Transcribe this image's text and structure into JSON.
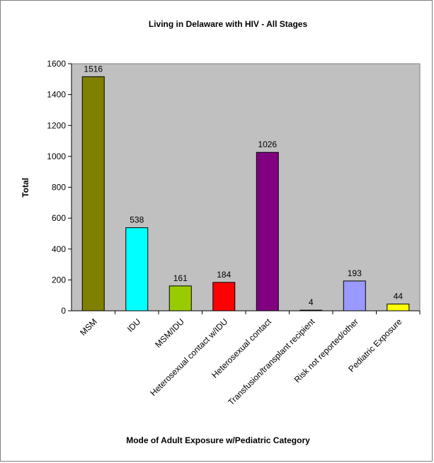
{
  "chart_data": {
    "type": "bar",
    "title": "Living in Delaware with HIV - All Stages",
    "xlabel": "Mode of Adult Exposure w/Pediatric Category",
    "ylabel": "Total",
    "ylim": [
      0,
      1600
    ],
    "yticks": [
      0,
      200,
      400,
      600,
      800,
      1000,
      1200,
      1400,
      1600
    ],
    "grid": false,
    "categories": [
      "MSM",
      "IDU",
      "MSM/IDU",
      "Heterosexual contact w/IDU",
      "Heterosexual contact",
      "Transfusion/transplant recipient",
      "Risk not reported/other",
      "Pediatric Exposure"
    ],
    "values": [
      1516,
      538,
      161,
      184,
      1026,
      4,
      193,
      44
    ],
    "colors": [
      "#808000",
      "#00FFFF",
      "#99CC00",
      "#FF0000",
      "#800080",
      "#000000",
      "#9999FF",
      "#FFFF00"
    ],
    "plot_background": "#C0C0C0"
  }
}
